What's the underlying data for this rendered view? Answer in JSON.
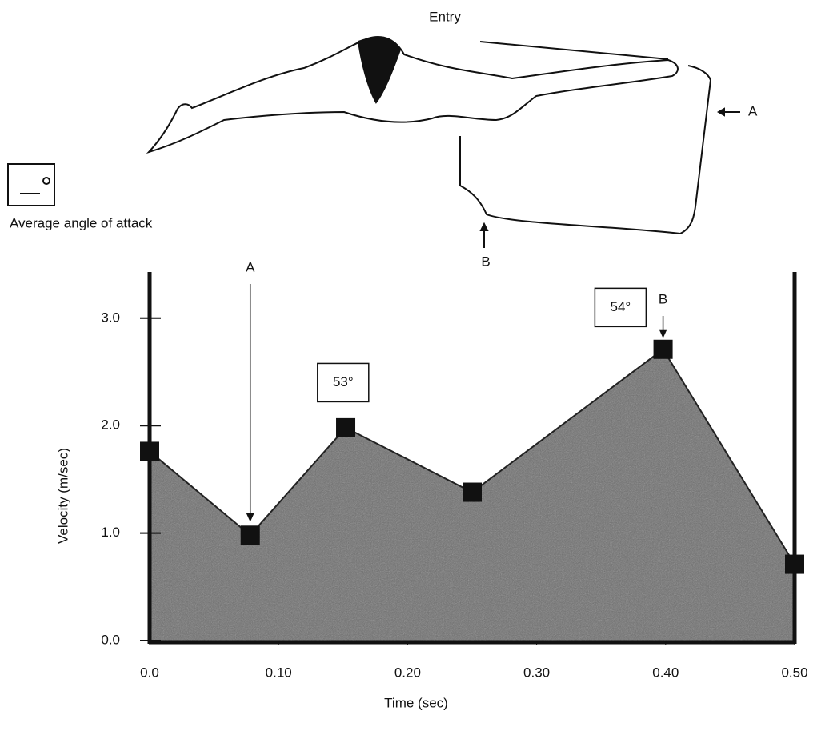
{
  "chart_data": {
    "type": "area",
    "xlabel": "Time (sec)",
    "ylabel": "Velocity (m/sec)",
    "x": [
      0.0,
      0.078,
      0.152,
      0.25,
      0.398,
      0.5
    ],
    "values": [
      1.76,
      0.98,
      1.98,
      1.38,
      2.71,
      0.71
    ],
    "color": "#6e6e6e",
    "xlim": [
      0,
      0.5
    ],
    "ylim": [
      0,
      3.43
    ],
    "xticks": [
      {
        "value": 0,
        "label": "0.0"
      },
      {
        "value": 0.1,
        "label": "0.10"
      },
      {
        "value": 0.2,
        "label": "0.20"
      },
      {
        "value": 0.3,
        "label": "0.30"
      },
      {
        "value": 0.4,
        "label": "0.40"
      },
      {
        "value": 0.5,
        "label": "0.50"
      }
    ],
    "yticks": [
      {
        "value": 0,
        "label": "0.0"
      },
      {
        "value": 1,
        "label": "1.0"
      },
      {
        "value": 2,
        "label": "2.0"
      },
      {
        "value": 3,
        "label": "3.0"
      }
    ],
    "arrows": [
      {
        "text": "A",
        "x": 0.078,
        "y": 1.0
      },
      {
        "text": "B",
        "x": 0.398,
        "y": 2.71
      }
    ],
    "angle_boxes": [
      {
        "text": "53°",
        "x": 0.15,
        "y": 2.4
      },
      {
        "text": "54°",
        "x": 0.365,
        "y": 3.1
      }
    ]
  },
  "illustration": {
    "title": "Entry",
    "label_a": "A",
    "label_b": "B",
    "legend": "Average angle of attack"
  }
}
